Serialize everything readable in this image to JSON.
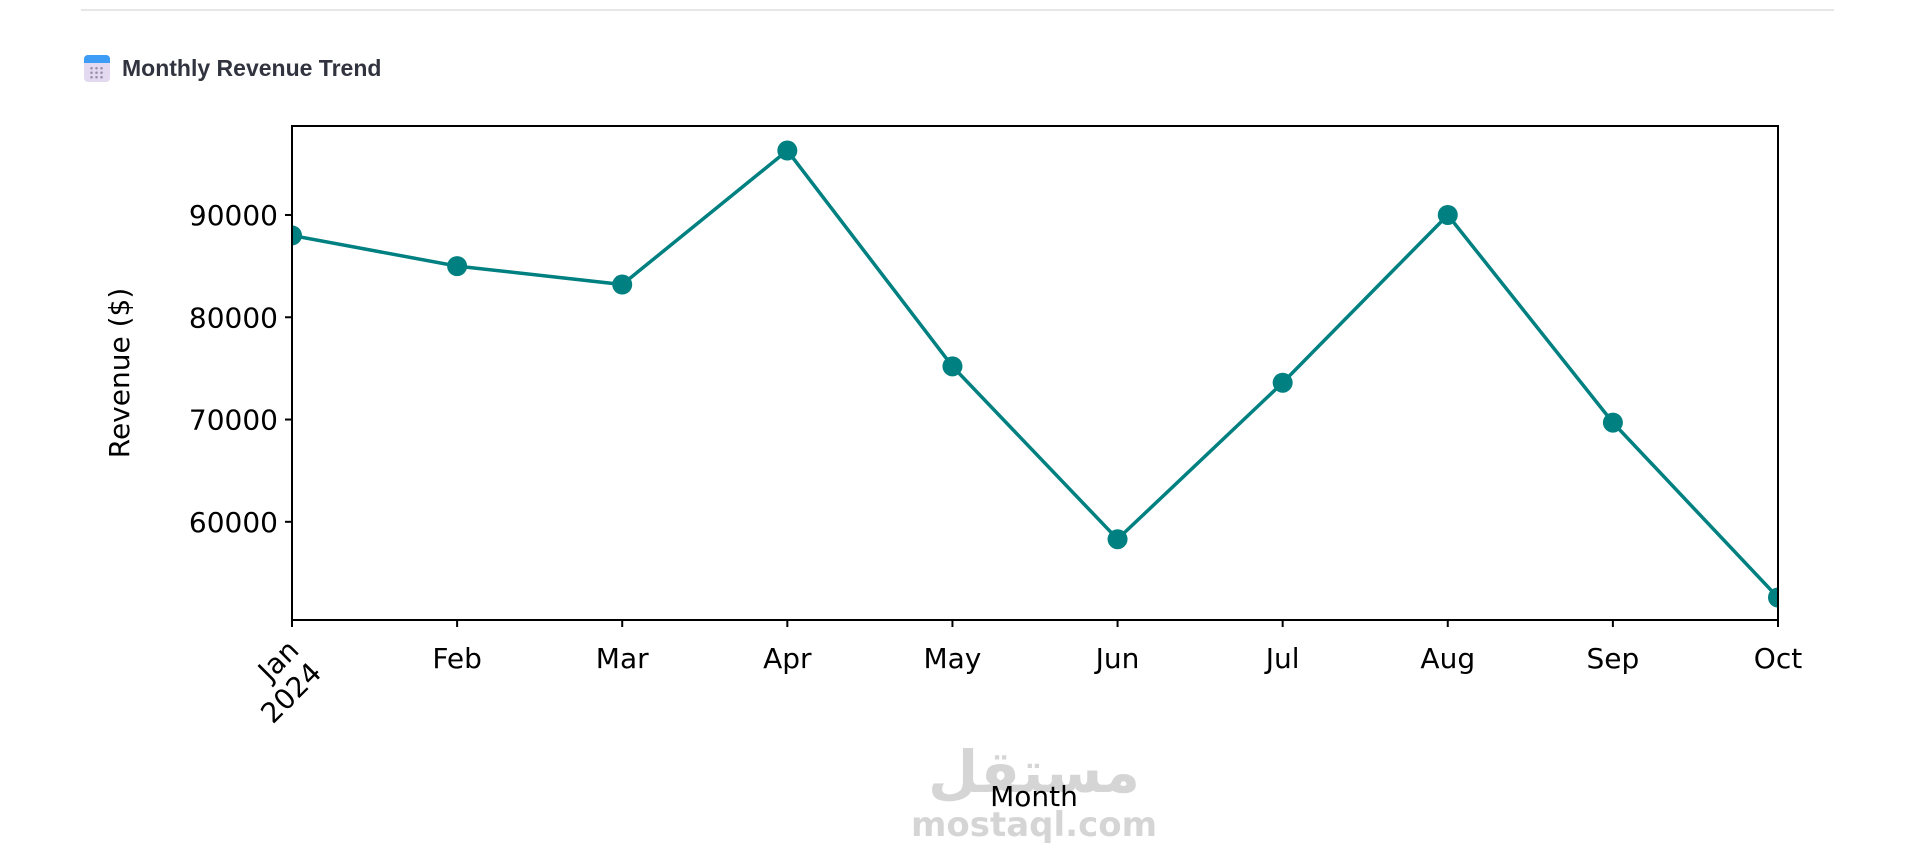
{
  "header": {
    "title": "Monthly Revenue Trend",
    "icon": "calendar-icon"
  },
  "watermark": {
    "arabic": "مستقل",
    "latin": "mostaql.com"
  },
  "chart_data": {
    "type": "line",
    "title": "",
    "xlabel": "Month",
    "ylabel": "Revenue ($)",
    "categories": [
      "Jan\n2024",
      "Feb",
      "Mar",
      "Apr",
      "May",
      "Jun",
      "Jul",
      "Aug",
      "Sep",
      "Oct"
    ],
    "tick_labels": {
      "x_first_line1": "Jan",
      "x_first_line2": "2024"
    },
    "values": [
      88000,
      85000,
      83200,
      96300,
      75200,
      58300,
      73600,
      90000,
      69700,
      52600
    ],
    "yticks": [
      60000,
      70000,
      80000,
      90000
    ],
    "ylim": [
      50400,
      98700
    ],
    "grid": false,
    "marker": "circle",
    "color": "#008080"
  }
}
